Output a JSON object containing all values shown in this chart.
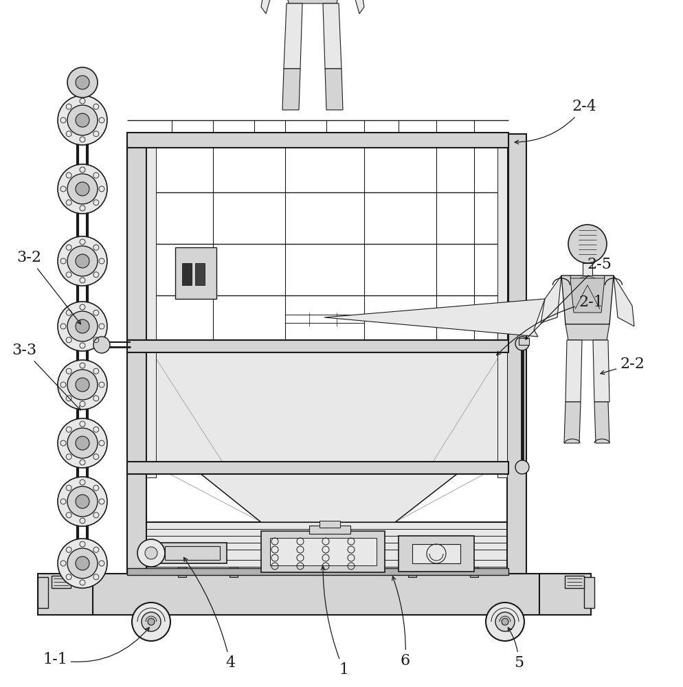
{
  "bg_color": "#ffffff",
  "lc": "#1a1a1a",
  "gray1": "#e8e8e8",
  "gray2": "#d4d4d4",
  "gray3": "#b0b0b0",
  "gray4": "#888888",
  "gray5": "#606060",
  "label_fs": 16,
  "ann_fs": 14
}
